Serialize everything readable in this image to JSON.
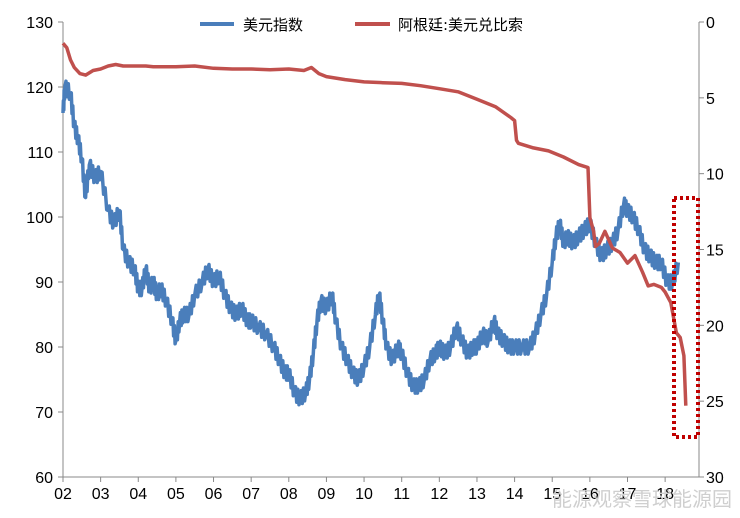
{
  "chart_data": {
    "type": "line",
    "legend": {
      "position": "top"
    },
    "grid": false,
    "x_axis": {
      "ticks": [
        "02",
        "03",
        "04",
        "05",
        "06",
        "07",
        "08",
        "09",
        "10",
        "11",
        "12",
        "13",
        "14",
        "15",
        "16",
        "17",
        "18"
      ]
    },
    "y_left": {
      "min": 60,
      "max": 130,
      "ticks": [
        60,
        70,
        80,
        90,
        100,
        110,
        120,
        130
      ]
    },
    "y_right": {
      "min": 0,
      "max": 30,
      "inverted": true,
      "ticks": [
        0,
        5,
        10,
        15,
        20,
        25,
        30
      ]
    },
    "series": [
      {
        "name": "美元指数",
        "axis": "left",
        "color": "#4a7ebb",
        "points": [
          [
            2002.0,
            116
          ],
          [
            2002.05,
            120
          ],
          [
            2002.2,
            119
          ],
          [
            2002.3,
            114
          ],
          [
            2002.4,
            112
          ],
          [
            2002.5,
            109
          ],
          [
            2002.6,
            103
          ],
          [
            2002.7,
            108
          ],
          [
            2002.85,
            106
          ],
          [
            2003.0,
            107
          ],
          [
            2003.2,
            101
          ],
          [
            2003.35,
            99
          ],
          [
            2003.5,
            101
          ],
          [
            2003.6,
            95
          ],
          [
            2003.75,
            93
          ],
          [
            2003.9,
            92
          ],
          [
            2004.0,
            89
          ],
          [
            2004.1,
            89
          ],
          [
            2004.2,
            92
          ],
          [
            2004.3,
            89
          ],
          [
            2004.4,
            90
          ],
          [
            2004.5,
            88
          ],
          [
            2004.6,
            89
          ],
          [
            2004.75,
            87
          ],
          [
            2004.9,
            84
          ],
          [
            2005.0,
            81
          ],
          [
            2005.1,
            84
          ],
          [
            2005.2,
            85
          ],
          [
            2005.35,
            85
          ],
          [
            2005.5,
            88
          ],
          [
            2005.7,
            90
          ],
          [
            2005.85,
            92
          ],
          [
            2006.0,
            90
          ],
          [
            2006.15,
            91
          ],
          [
            2006.3,
            88
          ],
          [
            2006.45,
            86
          ],
          [
            2006.6,
            85
          ],
          [
            2006.75,
            86
          ],
          [
            2006.9,
            84
          ],
          [
            2007.0,
            84
          ],
          [
            2007.2,
            83
          ],
          [
            2007.4,
            82
          ],
          [
            2007.6,
            80
          ],
          [
            2007.75,
            78
          ],
          [
            2007.9,
            76
          ],
          [
            2008.0,
            76
          ],
          [
            2008.15,
            73
          ],
          [
            2008.3,
            72
          ],
          [
            2008.45,
            73
          ],
          [
            2008.55,
            75
          ],
          [
            2008.65,
            79
          ],
          [
            2008.75,
            84
          ],
          [
            2008.85,
            87
          ],
          [
            2009.0,
            86
          ],
          [
            2009.15,
            88
          ],
          [
            2009.25,
            84
          ],
          [
            2009.4,
            80
          ],
          [
            2009.55,
            78
          ],
          [
            2009.7,
            76
          ],
          [
            2009.85,
            75
          ],
          [
            2010.0,
            77
          ],
          [
            2010.15,
            80
          ],
          [
            2010.3,
            85
          ],
          [
            2010.4,
            88
          ],
          [
            2010.5,
            84
          ],
          [
            2010.6,
            80
          ],
          [
            2010.75,
            78
          ],
          [
            2010.9,
            80
          ],
          [
            2011.0,
            79
          ],
          [
            2011.15,
            76
          ],
          [
            2011.3,
            74
          ],
          [
            2011.45,
            74
          ],
          [
            2011.6,
            75
          ],
          [
            2011.75,
            78
          ],
          [
            2011.9,
            79
          ],
          [
            2012.0,
            80
          ],
          [
            2012.15,
            79
          ],
          [
            2012.3,
            80
          ],
          [
            2012.45,
            83
          ],
          [
            2012.6,
            81
          ],
          [
            2012.75,
            79
          ],
          [
            2012.9,
            80
          ],
          [
            2013.0,
            80
          ],
          [
            2013.15,
            82
          ],
          [
            2013.3,
            81
          ],
          [
            2013.45,
            84
          ],
          [
            2013.55,
            82
          ],
          [
            2013.7,
            81
          ],
          [
            2013.85,
            80
          ],
          [
            2014.0,
            80
          ],
          [
            2014.2,
            80
          ],
          [
            2014.4,
            80
          ],
          [
            2014.55,
            82
          ],
          [
            2014.7,
            85
          ],
          [
            2014.85,
            88
          ],
          [
            2015.0,
            93
          ],
          [
            2015.1,
            97
          ],
          [
            2015.2,
            99
          ],
          [
            2015.3,
            96
          ],
          [
            2015.4,
            97
          ],
          [
            2015.55,
            96
          ],
          [
            2015.7,
            97
          ],
          [
            2015.85,
            98
          ],
          [
            2016.0,
            99
          ],
          [
            2016.15,
            96
          ],
          [
            2016.3,
            94
          ],
          [
            2016.45,
            95
          ],
          [
            2016.6,
            96
          ],
          [
            2016.75,
            98
          ],
          [
            2016.9,
            102
          ],
          [
            2017.0,
            101
          ],
          [
            2017.15,
            100
          ],
          [
            2017.3,
            98
          ],
          [
            2017.45,
            95
          ],
          [
            2017.6,
            94
          ],
          [
            2017.75,
            93
          ],
          [
            2017.9,
            93
          ],
          [
            2018.05,
            90
          ],
          [
            2018.2,
            90
          ],
          [
            2018.35,
            93
          ]
        ]
      },
      {
        "name": "阿根廷:美元兑比索",
        "axis": "right",
        "color": "#c0504d",
        "points": [
          [
            2002.0,
            1.4
          ],
          [
            2002.1,
            1.7
          ],
          [
            2002.2,
            2.5
          ],
          [
            2002.3,
            3.0
          ],
          [
            2002.45,
            3.4
          ],
          [
            2002.6,
            3.5
          ],
          [
            2002.8,
            3.2
          ],
          [
            2003.0,
            3.1
          ],
          [
            2003.2,
            2.9
          ],
          [
            2003.4,
            2.8
          ],
          [
            2003.6,
            2.9
          ],
          [
            2003.8,
            2.9
          ],
          [
            2004.0,
            2.9
          ],
          [
            2004.2,
            2.9
          ],
          [
            2004.4,
            2.95
          ],
          [
            2004.6,
            2.95
          ],
          [
            2005.0,
            2.95
          ],
          [
            2005.5,
            2.9
          ],
          [
            2006.0,
            3.05
          ],
          [
            2006.5,
            3.1
          ],
          [
            2007.0,
            3.1
          ],
          [
            2007.5,
            3.15
          ],
          [
            2008.0,
            3.1
          ],
          [
            2008.4,
            3.2
          ],
          [
            2008.6,
            3.0
          ],
          [
            2008.8,
            3.4
          ],
          [
            2009.0,
            3.6
          ],
          [
            2009.5,
            3.8
          ],
          [
            2010.0,
            3.95
          ],
          [
            2010.5,
            4.0
          ],
          [
            2011.0,
            4.05
          ],
          [
            2011.5,
            4.2
          ],
          [
            2012.0,
            4.4
          ],
          [
            2012.5,
            4.6
          ],
          [
            2013.0,
            5.1
          ],
          [
            2013.5,
            5.6
          ],
          [
            2013.9,
            6.3
          ],
          [
            2014.0,
            6.5
          ],
          [
            2014.05,
            7.8
          ],
          [
            2014.1,
            8.0
          ],
          [
            2014.5,
            8.3
          ],
          [
            2014.9,
            8.5
          ],
          [
            2015.3,
            8.9
          ],
          [
            2015.7,
            9.4
          ],
          [
            2015.95,
            9.6
          ],
          [
            2016.0,
            12.9
          ],
          [
            2016.1,
            13.8
          ],
          [
            2016.15,
            14.8
          ],
          [
            2016.25,
            14.6
          ],
          [
            2016.4,
            13.8
          ],
          [
            2016.6,
            14.9
          ],
          [
            2016.8,
            15.2
          ],
          [
            2017.0,
            15.9
          ],
          [
            2017.2,
            15.4
          ],
          [
            2017.4,
            16.5
          ],
          [
            2017.55,
            17.4
          ],
          [
            2017.7,
            17.3
          ],
          [
            2017.9,
            17.5
          ],
          [
            2018.0,
            17.8
          ],
          [
            2018.15,
            18.5
          ],
          [
            2018.3,
            20.5
          ],
          [
            2018.4,
            20.8
          ],
          [
            2018.5,
            22.0
          ],
          [
            2018.55,
            25.3
          ]
        ]
      }
    ]
  },
  "watermark": "能源观察雪球能源园",
  "colors": {
    "highlight_box": "#c00000"
  }
}
